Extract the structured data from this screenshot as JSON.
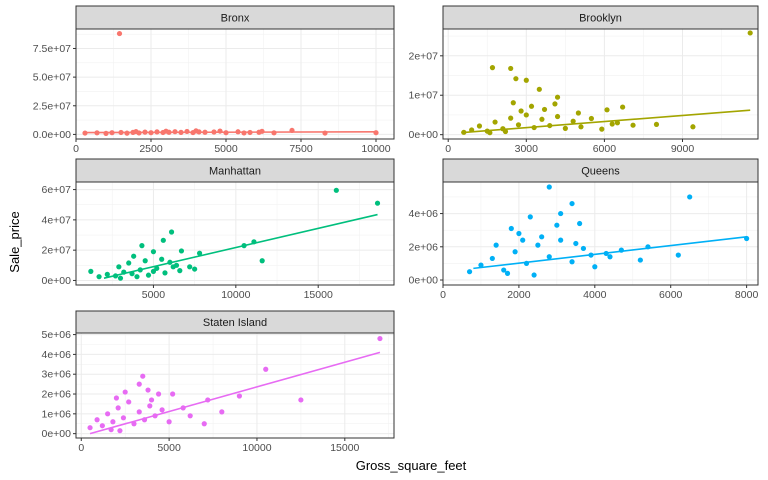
{
  "chart_data": {
    "type": "scatter",
    "facet_by": "borough",
    "xlabel": "Gross_square_feet",
    "ylabel": "Sale_price",
    "grid": true,
    "trend_line": "linear",
    "panels": [
      {
        "name": "Bronx",
        "color": "#F8766D",
        "xlim": [
          0,
          10600
        ],
        "ylim": [
          -4000000,
          92000000
        ],
        "x_ticks": [
          0,
          2500,
          5000,
          7500,
          10000
        ],
        "x_tick_labels": [
          "0",
          "2500",
          "5000",
          "7500",
          "10000"
        ],
        "y_ticks": [
          0,
          25000000,
          50000000,
          75000000
        ],
        "y_tick_labels": [
          "0.0e+00",
          "2.5e+07",
          "5.0e+07",
          "7.5e+07"
        ],
        "points": [
          [
            1450,
            88000000
          ],
          [
            300,
            1200000
          ],
          [
            700,
            1400000
          ],
          [
            1000,
            900000
          ],
          [
            1200,
            1500000
          ],
          [
            1500,
            1700000
          ],
          [
            1700,
            1100000
          ],
          [
            1900,
            1800000
          ],
          [
            2100,
            1300000
          ],
          [
            2300,
            2000000
          ],
          [
            2500,
            1500000
          ],
          [
            2700,
            2200000
          ],
          [
            2900,
            1700000
          ],
          [
            3100,
            1900000
          ],
          [
            3300,
            2400000
          ],
          [
            3500,
            1800000
          ],
          [
            3700,
            2600000
          ],
          [
            3900,
            1600000
          ],
          [
            4100,
            2200000
          ],
          [
            4300,
            1900000
          ],
          [
            4600,
            2100000
          ],
          [
            5000,
            1500000
          ],
          [
            5400,
            2300000
          ],
          [
            5800,
            1700000
          ],
          [
            6200,
            2700000
          ],
          [
            7200,
            3500000
          ],
          [
            8300,
            1200000
          ],
          [
            10000,
            1500000
          ],
          [
            2000,
            2500000
          ],
          [
            3000,
            2800000
          ],
          [
            4000,
            3100000
          ],
          [
            4800,
            2900000
          ],
          [
            5600,
            1300000
          ],
          [
            6100,
            1900000
          ],
          [
            6600,
            1400000
          ]
        ],
        "fit": [
          [
            300,
            1600000
          ],
          [
            10000,
            2300000
          ]
        ]
      },
      {
        "name": "Brooklyn",
        "color": "#A3A500",
        "xlim": [
          -200,
          11900
        ],
        "ylim": [
          -1100000,
          26800000
        ],
        "x_ticks": [
          0,
          3000,
          6000,
          9000
        ],
        "x_tick_labels": [
          "0",
          "3000",
          "6000",
          "9000"
        ],
        "y_ticks": [
          0,
          10000000,
          20000000
        ],
        "y_tick_labels": [
          "0e+00",
          "1e+07",
          "2e+07"
        ],
        "points": [
          [
            11600,
            25800000
          ],
          [
            1700,
            17000000
          ],
          [
            2400,
            16800000
          ],
          [
            3000,
            13800000
          ],
          [
            2600,
            14200000
          ],
          [
            3500,
            11500000
          ],
          [
            4200,
            9500000
          ],
          [
            6700,
            7000000
          ],
          [
            6100,
            6300000
          ],
          [
            5000,
            5500000
          ],
          [
            8000,
            2600000
          ],
          [
            7100,
            2400000
          ],
          [
            9400,
            2000000
          ],
          [
            6500,
            3000000
          ],
          [
            600,
            600000
          ],
          [
            900,
            1200000
          ],
          [
            1200,
            2200000
          ],
          [
            1500,
            900000
          ],
          [
            1800,
            3200000
          ],
          [
            2100,
            1500000
          ],
          [
            2400,
            4200000
          ],
          [
            2700,
            2500000
          ],
          [
            3000,
            5000000
          ],
          [
            3300,
            1800000
          ],
          [
            3600,
            3900000
          ],
          [
            3900,
            2300000
          ],
          [
            4200,
            4600000
          ],
          [
            4500,
            1600000
          ],
          [
            4800,
            3400000
          ],
          [
            5100,
            2000000
          ],
          [
            5500,
            4100000
          ],
          [
            5900,
            1400000
          ],
          [
            6300,
            2700000
          ],
          [
            1600,
            500000
          ],
          [
            2200,
            800000
          ],
          [
            2800,
            6000000
          ],
          [
            3200,
            7200000
          ],
          [
            2500,
            8100000
          ],
          [
            3700,
            6400000
          ],
          [
            4100,
            7800000
          ]
        ],
        "fit": [
          [
            500,
            500000
          ],
          [
            11600,
            6200000
          ]
        ]
      },
      {
        "name": "Manhattan",
        "color": "#00BF7D",
        "xlim": [
          300,
          19600
        ],
        "ylim": [
          -3000000,
          65000000
        ],
        "x_ticks": [
          5000,
          10000,
          15000
        ],
        "x_tick_labels": [
          "5000",
          "10000",
          "15000"
        ],
        "y_ticks": [
          0,
          20000000,
          40000000,
          60000000
        ],
        "y_tick_labels": [
          "0e+00",
          "2e+07",
          "4e+07",
          "6e+07"
        ],
        "points": [
          [
            16100,
            59500000
          ],
          [
            18600,
            51000000
          ],
          [
            11100,
            25500000
          ],
          [
            10500,
            23000000
          ],
          [
            11600,
            13000000
          ],
          [
            6100,
            32000000
          ],
          [
            5600,
            26500000
          ],
          [
            4300,
            23000000
          ],
          [
            7800,
            18000000
          ],
          [
            6700,
            19500000
          ],
          [
            5000,
            19000000
          ],
          [
            3800,
            16000000
          ],
          [
            7200,
            9000000
          ],
          [
            6400,
            10000000
          ],
          [
            1200,
            6000000
          ],
          [
            1700,
            2500000
          ],
          [
            2200,
            4000000
          ],
          [
            2700,
            3000000
          ],
          [
            3200,
            5500000
          ],
          [
            3700,
            4500000
          ],
          [
            4200,
            7000000
          ],
          [
            4700,
            3500000
          ],
          [
            5200,
            8000000
          ],
          [
            5700,
            5000000
          ],
          [
            6200,
            9000000
          ],
          [
            2900,
            9000000
          ],
          [
            3500,
            11500000
          ],
          [
            4500,
            13000000
          ],
          [
            5500,
            14000000
          ],
          [
            6000,
            12000000
          ],
          [
            4000,
            2500000
          ],
          [
            3000,
            1500000
          ],
          [
            5000,
            6000000
          ],
          [
            6600,
            6500000
          ],
          [
            7500,
            7500000
          ]
        ],
        "fit": [
          [
            2000,
            1500000
          ],
          [
            18600,
            43500000
          ]
        ]
      },
      {
        "name": "Queens",
        "color": "#00B0F6",
        "xlim": [
          0,
          8300
        ],
        "ylim": [
          -300000,
          5900000
        ],
        "x_ticks": [
          0,
          2000,
          4000,
          6000,
          8000
        ],
        "x_tick_labels": [
          "0",
          "2000",
          "4000",
          "6000",
          "8000"
        ],
        "y_ticks": [
          0,
          2000000,
          4000000
        ],
        "y_tick_labels": [
          "0e+00",
          "2e+06",
          "4e+06"
        ],
        "points": [
          [
            2800,
            5600000
          ],
          [
            6500,
            5000000
          ],
          [
            3400,
            4600000
          ],
          [
            3100,
            4000000
          ],
          [
            2300,
            3800000
          ],
          [
            3000,
            3300000
          ],
          [
            3600,
            3400000
          ],
          [
            2000,
            2800000
          ],
          [
            1800,
            3100000
          ],
          [
            5400,
            2000000
          ],
          [
            4700,
            1800000
          ],
          [
            6200,
            1500000
          ],
          [
            8000,
            2500000
          ],
          [
            4400,
            1400000
          ],
          [
            5200,
            1200000
          ],
          [
            700,
            500000
          ],
          [
            1000,
            900000
          ],
          [
            1300,
            1300000
          ],
          [
            1600,
            600000
          ],
          [
            1900,
            1700000
          ],
          [
            2200,
            1000000
          ],
          [
            2500,
            2100000
          ],
          [
            2800,
            1400000
          ],
          [
            3100,
            2400000
          ],
          [
            3400,
            1100000
          ],
          [
            3700,
            1900000
          ],
          [
            4000,
            800000
          ],
          [
            4300,
            1600000
          ],
          [
            2600,
            2600000
          ],
          [
            1400,
            2100000
          ],
          [
            2100,
            2400000
          ],
          [
            3500,
            2200000
          ],
          [
            3900,
            1500000
          ],
          [
            1700,
            400000
          ],
          [
            2400,
            300000
          ]
        ],
        "fit": [
          [
            800,
            700000
          ],
          [
            8000,
            2600000
          ]
        ]
      },
      {
        "name": "Staten Island",
        "color": "#E76BF3",
        "xlim": [
          -300,
          17800
        ],
        "ylim": [
          -220000,
          5080000
        ],
        "x_ticks": [
          0,
          5000,
          10000,
          15000
        ],
        "x_tick_labels": [
          "0",
          "5000",
          "10000",
          "15000"
        ],
        "y_ticks": [
          0,
          1000000,
          2000000,
          3000000,
          4000000,
          5000000
        ],
        "y_tick_labels": [
          "0e+00",
          "1e+06",
          "2e+06",
          "3e+06",
          "4e+06",
          "5e+06"
        ],
        "points": [
          [
            17000,
            4800000
          ],
          [
            10500,
            3250000
          ],
          [
            12500,
            1700000
          ],
          [
            9000,
            1900000
          ],
          [
            8000,
            1100000
          ],
          [
            7200,
            1700000
          ],
          [
            5200,
            2000000
          ],
          [
            5800,
            1300000
          ],
          [
            3500,
            2900000
          ],
          [
            3300,
            2500000
          ],
          [
            3800,
            2200000
          ],
          [
            6200,
            900000
          ],
          [
            7000,
            500000
          ],
          [
            500,
            300000
          ],
          [
            900,
            700000
          ],
          [
            1200,
            400000
          ],
          [
            1500,
            1000000
          ],
          [
            1800,
            600000
          ],
          [
            2100,
            1300000
          ],
          [
            2400,
            800000
          ],
          [
            2700,
            1600000
          ],
          [
            3000,
            500000
          ],
          [
            3300,
            1100000
          ],
          [
            3600,
            700000
          ],
          [
            3900,
            1400000
          ],
          [
            4200,
            900000
          ],
          [
            4600,
            1200000
          ],
          [
            5000,
            600000
          ],
          [
            2000,
            1800000
          ],
          [
            2500,
            2100000
          ],
          [
            4000,
            1700000
          ],
          [
            4400,
            2000000
          ],
          [
            1700,
            200000
          ],
          [
            2200,
            150000
          ]
        ],
        "fit": [
          [
            500,
            0
          ],
          [
            17000,
            4100000
          ]
        ]
      }
    ]
  }
}
